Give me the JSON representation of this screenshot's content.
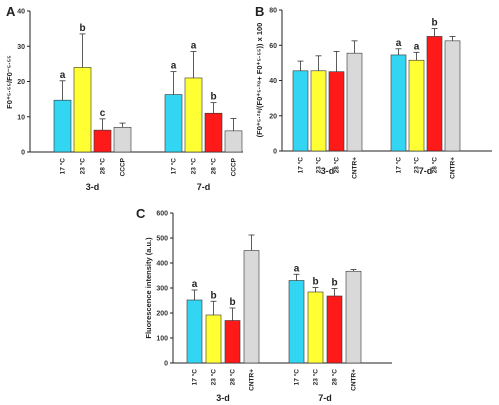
{
  "chart_data": [
    {
      "panel": "A",
      "type": "bar",
      "ylabel": "F0⁺⁵·⁵⁵/F0⁻⁵·⁵⁵",
      "ylim": [
        0,
        40
      ],
      "yticks": [
        0,
        10,
        20,
        30,
        40
      ],
      "groups": [
        {
          "name": "3-d",
          "categories": [
            "17 °C",
            "23 °C",
            "28 °C",
            "CCCP"
          ],
          "values": [
            14.7,
            24.0,
            6.2,
            7.0
          ],
          "errors": [
            5.5,
            9.5,
            3.2,
            1.2
          ],
          "letters": [
            "a",
            "b",
            "c",
            ""
          ]
        },
        {
          "name": "7-d",
          "categories": [
            "17 °C",
            "23 °C",
            "28 °C",
            "CCCP"
          ],
          "values": [
            16.3,
            21.0,
            11.0,
            6.0
          ],
          "errors": [
            6.5,
            7.5,
            3.0,
            3.5
          ],
          "letters": [
            "a",
            "a",
            "b",
            ""
          ]
        }
      ]
    },
    {
      "panel": "B",
      "type": "bar",
      "ylabel": "(F0⁺⁵·²⁸/(F0⁺⁵·²⁸+ F0⁺⁵·⁵⁵)) x 100",
      "ylim": [
        0,
        80
      ],
      "yticks": [
        0,
        20,
        40,
        60,
        80
      ],
      "groups": [
        {
          "name": "3-d",
          "categories": [
            "17 °C",
            "23 °C",
            "28 °C",
            "CNTR+"
          ],
          "values": [
            45.5,
            45.5,
            45.0,
            55.5
          ],
          "errors": [
            5.5,
            8.5,
            11.5,
            7.0
          ],
          "letters": [
            "",
            "",
            "",
            ""
          ]
        },
        {
          "name": "7-d",
          "categories": [
            "17 °C",
            "23 °C",
            "28 °C",
            "CNTR+"
          ],
          "values": [
            54.5,
            51.5,
            65.0,
            62.5
          ],
          "errors": [
            3.5,
            4.5,
            4.5,
            2.5
          ],
          "letters": [
            "a",
            "a",
            "b",
            ""
          ]
        }
      ]
    },
    {
      "panel": "C",
      "type": "bar",
      "ylabel": "Fluorescence intensity (a.u.)",
      "ylim": [
        0,
        600
      ],
      "yticks": [
        0,
        100,
        200,
        300,
        400,
        500,
        600
      ],
      "groups": [
        {
          "name": "3-d",
          "categories": [
            "17 °C",
            "23 °C",
            "28 °C",
            "CNTR+"
          ],
          "values": [
            252,
            192,
            170,
            450
          ],
          "errors": [
            40,
            55,
            50,
            62
          ],
          "letters": [
            "a",
            "b",
            "b",
            ""
          ]
        },
        {
          "name": "7-d",
          "categories": [
            "17 °C",
            "23 °C",
            "28 °C",
            "CNTR+"
          ],
          "values": [
            330,
            284,
            268,
            367
          ],
          "errors": [
            25,
            18,
            30,
            7
          ],
          "letters": [
            "a",
            "b",
            "b",
            ""
          ]
        }
      ]
    }
  ],
  "colors": [
    "#33d6f2",
    "#ffff33",
    "#ff1a1a",
    "#d9d9d9"
  ]
}
